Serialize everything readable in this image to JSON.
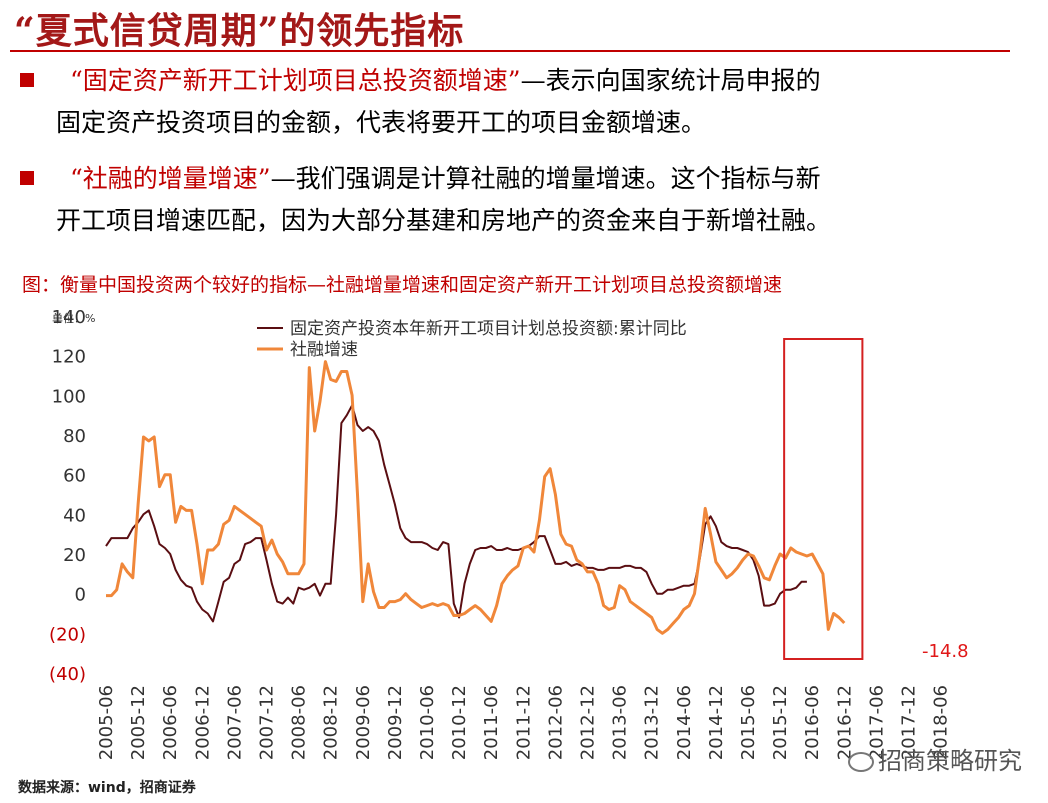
{
  "slide_title": "“夏式信贷周期”的领先指标",
  "bullets": [
    {
      "highlight": "“固定资产新开工计划项目总投资额增速”",
      "rest": "—表示向国家统计局申报的",
      "line2": "固定资产投资项目的金额，代表将要开工的项目金额增速。"
    },
    {
      "highlight": "“社融的增量增速”",
      "rest": "—我们强调是计算社融的增量增速。这个指标与新",
      "line2": "开工项目增速匹配，因为大部分基建和房地产的资金来自于新增社融。"
    }
  ],
  "figure_caption": "图：衡量中国投资两个较好的指标—社融增量增速和固定资产新开工计划项目总投资额增速",
  "source": "数据来源：wind，招商证券",
  "watermark": "招商策略研究",
  "colors": {
    "series1": "#5a0e12",
    "series2": "#f0873a",
    "highlight_box": "#d42020",
    "title": "#a31818"
  },
  "chart_data": {
    "type": "line",
    "unit_label": "单位：%",
    "ylim": [
      -40,
      140
    ],
    "yticks": [
      140,
      120,
      100,
      80,
      60,
      40,
      20,
      0,
      -20,
      -40
    ],
    "ytick_labels": [
      "140",
      "120",
      "100",
      "80",
      "60",
      "40",
      "20",
      "0",
      "(20)",
      "(40)"
    ],
    "xlim": [
      0,
      157
    ],
    "xticks": [
      {
        "label": "2005-06",
        "i": 0
      },
      {
        "label": "2005-12",
        "i": 6
      },
      {
        "label": "2006-06",
        "i": 12
      },
      {
        "label": "2006-12",
        "i": 18
      },
      {
        "label": "2007-06",
        "i": 24
      },
      {
        "label": "2007-12",
        "i": 30
      },
      {
        "label": "2008-06",
        "i": 36
      },
      {
        "label": "2008-12",
        "i": 42
      },
      {
        "label": "2009-06",
        "i": 48
      },
      {
        "label": "2009-12",
        "i": 54
      },
      {
        "label": "2010-06",
        "i": 60
      },
      {
        "label": "2010-12",
        "i": 66
      },
      {
        "label": "2011-06",
        "i": 72
      },
      {
        "label": "2011-12",
        "i": 78
      },
      {
        "label": "2012-06",
        "i": 84
      },
      {
        "label": "2012-12",
        "i": 90
      },
      {
        "label": "2013-06",
        "i": 96
      },
      {
        "label": "2013-12",
        "i": 102
      },
      {
        "label": "2014-06",
        "i": 108
      },
      {
        "label": "2014-12",
        "i": 114
      },
      {
        "label": "2015-06",
        "i": 120
      },
      {
        "label": "2015-12",
        "i": 126
      },
      {
        "label": "2016-06",
        "i": 132
      },
      {
        "label": "2016-12",
        "i": 138
      },
      {
        "label": "2017-06",
        "i": 144
      },
      {
        "label": "2017-12",
        "i": 150
      },
      {
        "label": "2018-06",
        "i": 156
      }
    ],
    "series": [
      {
        "name": "固定资产投资本年新开工项目计划总投资额:累计同比",
        "color_key": "series1",
        "points": [
          [
            0,
            24
          ],
          [
            1,
            28
          ],
          [
            3,
            28
          ],
          [
            4,
            28
          ],
          [
            5,
            33
          ],
          [
            6,
            36
          ],
          [
            7,
            40
          ],
          [
            8,
            42
          ],
          [
            9,
            34
          ],
          [
            10,
            25
          ],
          [
            11,
            23
          ],
          [
            12,
            20
          ],
          [
            13,
            12
          ],
          [
            14,
            7
          ],
          [
            15,
            4
          ],
          [
            16,
            3
          ],
          [
            17,
            -4
          ],
          [
            18,
            -8
          ],
          [
            19,
            -10
          ],
          [
            20,
            -14
          ],
          [
            21,
            -4
          ],
          [
            22,
            6
          ],
          [
            23,
            8
          ],
          [
            24,
            15
          ],
          [
            25,
            17
          ],
          [
            26,
            25
          ],
          [
            27,
            26
          ],
          [
            28,
            28
          ],
          [
            29,
            28
          ],
          [
            30,
            17
          ],
          [
            31,
            5
          ],
          [
            32,
            -4
          ],
          [
            33,
            -5
          ],
          [
            34,
            -2
          ],
          [
            35,
            -5
          ],
          [
            36,
            3
          ],
          [
            37,
            2
          ],
          [
            38,
            3
          ],
          [
            39,
            5
          ],
          [
            40,
            -1
          ],
          [
            41,
            5
          ],
          [
            42,
            5
          ],
          [
            43,
            40
          ],
          [
            44,
            86
          ],
          [
            45,
            90
          ],
          [
            46,
            95
          ],
          [
            47,
            85
          ],
          [
            48,
            82
          ],
          [
            49,
            84
          ],
          [
            50,
            82
          ],
          [
            51,
            77
          ],
          [
            52,
            65
          ],
          [
            53,
            55
          ],
          [
            54,
            45
          ],
          [
            55,
            33
          ],
          [
            56,
            28
          ],
          [
            57,
            26
          ],
          [
            58,
            26
          ],
          [
            59,
            26
          ],
          [
            60,
            25
          ],
          [
            61,
            23
          ],
          [
            62,
            22
          ],
          [
            63,
            26
          ],
          [
            64,
            25
          ],
          [
            65,
            -5
          ],
          [
            66,
            -12
          ],
          [
            67,
            5
          ],
          [
            68,
            15
          ],
          [
            69,
            22
          ],
          [
            70,
            23
          ],
          [
            71,
            23
          ],
          [
            72,
            24
          ],
          [
            73,
            22
          ],
          [
            74,
            22
          ],
          [
            75,
            23
          ],
          [
            76,
            22
          ],
          [
            77,
            22
          ],
          [
            78,
            23
          ],
          [
            79,
            24
          ],
          [
            80,
            26
          ],
          [
            81,
            29
          ],
          [
            82,
            29
          ],
          [
            83,
            22
          ],
          [
            84,
            15
          ],
          [
            85,
            15
          ],
          [
            86,
            16
          ],
          [
            87,
            14
          ],
          [
            88,
            15
          ],
          [
            89,
            14
          ],
          [
            90,
            13
          ],
          [
            91,
            13
          ],
          [
            92,
            12
          ],
          [
            93,
            12
          ],
          [
            94,
            13
          ],
          [
            95,
            13
          ],
          [
            96,
            13
          ],
          [
            97,
            14
          ],
          [
            98,
            14
          ],
          [
            99,
            13
          ],
          [
            100,
            13
          ],
          [
            101,
            11
          ],
          [
            102,
            5
          ],
          [
            103,
            0
          ],
          [
            104,
            0
          ],
          [
            105,
            2
          ],
          [
            106,
            2
          ],
          [
            107,
            3
          ],
          [
            108,
            4
          ],
          [
            109,
            4
          ],
          [
            110,
            5
          ],
          [
            111,
            18
          ],
          [
            112,
            35
          ],
          [
            113,
            39
          ],
          [
            114,
            34
          ],
          [
            115,
            26
          ],
          [
            116,
            24
          ],
          [
            117,
            23
          ],
          [
            118,
            23
          ],
          [
            119,
            22
          ],
          [
            120,
            21
          ],
          [
            121,
            17
          ],
          [
            122,
            9
          ],
          [
            123,
            -6
          ],
          [
            124,
            -6
          ],
          [
            125,
            -5
          ],
          [
            126,
            0
          ],
          [
            127,
            2
          ],
          [
            128,
            2
          ],
          [
            129,
            3
          ],
          [
            130,
            6
          ],
          [
            131,
            6
          ]
        ]
      },
      {
        "name": "社融增速",
        "color_key": "series2",
        "points": [
          [
            0,
            -1
          ],
          [
            1,
            -1
          ],
          [
            2,
            2
          ],
          [
            3,
            15
          ],
          [
            4,
            11
          ],
          [
            5,
            8
          ],
          [
            6,
            45
          ],
          [
            7,
            79
          ],
          [
            8,
            77
          ],
          [
            9,
            79
          ],
          [
            10,
            54
          ],
          [
            11,
            60
          ],
          [
            12,
            60
          ],
          [
            13,
            36
          ],
          [
            14,
            44
          ],
          [
            15,
            42
          ],
          [
            16,
            42
          ],
          [
            17,
            25
          ],
          [
            18,
            5
          ],
          [
            19,
            22
          ],
          [
            20,
            22
          ],
          [
            21,
            25
          ],
          [
            22,
            35
          ],
          [
            23,
            37
          ],
          [
            24,
            44
          ],
          [
            25,
            42
          ],
          [
            26,
            40
          ],
          [
            27,
            38
          ],
          [
            28,
            36
          ],
          [
            29,
            34
          ],
          [
            30,
            22
          ],
          [
            31,
            27
          ],
          [
            32,
            20
          ],
          [
            33,
            16
          ],
          [
            34,
            10
          ],
          [
            35,
            10
          ],
          [
            36,
            10
          ],
          [
            37,
            15
          ],
          [
            38,
            114
          ],
          [
            39,
            82
          ],
          [
            40,
            97
          ],
          [
            41,
            117
          ],
          [
            42,
            108
          ],
          [
            43,
            107
          ],
          [
            44,
            112
          ],
          [
            45,
            112
          ],
          [
            46,
            100
          ],
          [
            47,
            50
          ],
          [
            48,
            -4
          ],
          [
            49,
            15
          ],
          [
            50,
            1
          ],
          [
            51,
            -7
          ],
          [
            52,
            -7
          ],
          [
            53,
            -4
          ],
          [
            54,
            -4
          ],
          [
            55,
            -3
          ],
          [
            56,
            0
          ],
          [
            57,
            -3
          ],
          [
            58,
            -5
          ],
          [
            59,
            -7
          ],
          [
            60,
            -6
          ],
          [
            61,
            -5
          ],
          [
            62,
            -6
          ],
          [
            63,
            -5
          ],
          [
            64,
            -6
          ],
          [
            65,
            -11
          ],
          [
            66,
            -11
          ],
          [
            67,
            -10
          ],
          [
            68,
            -8
          ],
          [
            69,
            -6
          ],
          [
            70,
            -8
          ],
          [
            71,
            -11
          ],
          [
            72,
            -14
          ],
          [
            73,
            -6
          ],
          [
            74,
            5
          ],
          [
            75,
            9
          ],
          [
            76,
            12
          ],
          [
            77,
            14
          ],
          [
            78,
            23
          ],
          [
            79,
            24
          ],
          [
            80,
            21
          ],
          [
            81,
            37
          ],
          [
            82,
            59
          ],
          [
            83,
            63
          ],
          [
            84,
            50
          ],
          [
            85,
            30
          ],
          [
            86,
            25
          ],
          [
            87,
            24
          ],
          [
            88,
            17
          ],
          [
            89,
            15
          ],
          [
            90,
            11
          ],
          [
            91,
            11
          ],
          [
            92,
            5
          ],
          [
            93,
            -6
          ],
          [
            94,
            -8
          ],
          [
            95,
            -7
          ],
          [
            96,
            4
          ],
          [
            97,
            2
          ],
          [
            98,
            -4
          ],
          [
            99,
            -6
          ],
          [
            100,
            -8
          ],
          [
            101,
            -10
          ],
          [
            102,
            -12
          ],
          [
            103,
            -18
          ],
          [
            104,
            -20
          ],
          [
            105,
            -18
          ],
          [
            106,
            -15
          ],
          [
            107,
            -12
          ],
          [
            108,
            -8
          ],
          [
            109,
            -6
          ],
          [
            110,
            0
          ],
          [
            111,
            20
          ],
          [
            112,
            43
          ],
          [
            113,
            30
          ],
          [
            114,
            16
          ],
          [
            115,
            12
          ],
          [
            116,
            8
          ],
          [
            117,
            10
          ],
          [
            118,
            13
          ],
          [
            119,
            17
          ],
          [
            120,
            20
          ],
          [
            121,
            19
          ],
          [
            122,
            14
          ],
          [
            123,
            8
          ],
          [
            124,
            7
          ],
          [
            125,
            14
          ],
          [
            126,
            20
          ],
          [
            127,
            18
          ],
          [
            128,
            23
          ],
          [
            129,
            21
          ],
          [
            130,
            20
          ],
          [
            131,
            19
          ],
          [
            132,
            20
          ],
          [
            133,
            15
          ],
          [
            134,
            10
          ],
          [
            135,
            -18
          ],
          [
            136,
            -10
          ],
          [
            137,
            -12
          ],
          [
            138,
            -14.8
          ]
        ]
      }
    ],
    "end_annotation": "-14.8",
    "highlight_range_labels": [
      "2015-12",
      "2016-12"
    ],
    "highlight_range": [
      126,
      141
    ]
  }
}
